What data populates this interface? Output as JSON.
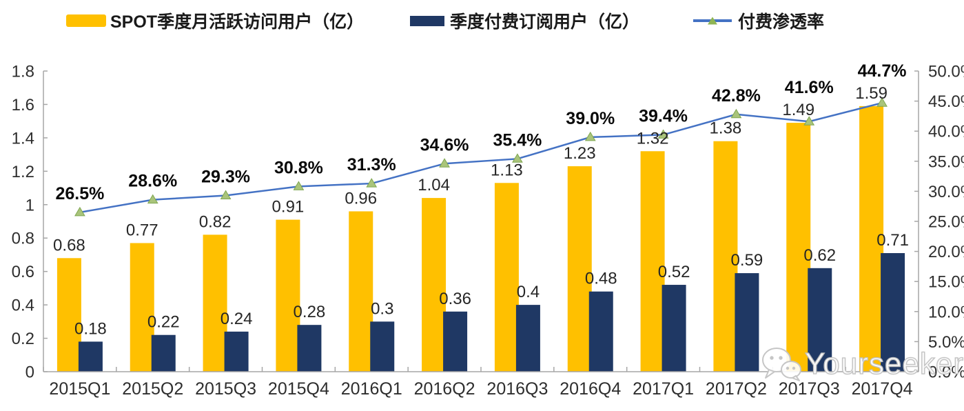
{
  "legend": {
    "items": [
      {
        "id": "mau",
        "label": "SPOT季度月活跃访问用户（亿）",
        "swatch": "bar",
        "color": "#FFC000"
      },
      {
        "id": "sub",
        "label": "季度付费订阅用户（亿）",
        "swatch": "bar",
        "color": "#1F3864"
      },
      {
        "id": "pen",
        "label": "付费渗透率",
        "swatch": "line",
        "line_color": "#4472C4",
        "marker_color": "#8FB554"
      }
    ]
  },
  "chart_data": {
    "type": "bar",
    "subtype": "bar+line combo, dual axis",
    "categories": [
      "2015Q1",
      "2015Q2",
      "2015Q3",
      "2015Q4",
      "2016Q1",
      "2016Q2",
      "2016Q3",
      "2016Q4",
      "2017Q1",
      "2017Q2",
      "2017Q3",
      "2017Q4"
    ],
    "series": [
      {
        "name": "SPOT季度月活跃访问用户（亿）",
        "type": "bar",
        "axis": "left",
        "color": "#FFC000",
        "values": [
          0.68,
          0.77,
          0.82,
          0.91,
          0.96,
          1.04,
          1.13,
          1.23,
          1.32,
          1.38,
          1.49,
          1.59
        ],
        "labels": [
          "0.68",
          "0.77",
          "0.82",
          "0.91",
          "0.96",
          "1.04",
          "1.13",
          "1.23",
          "1.32",
          "1.38",
          "1.49",
          "1.59"
        ]
      },
      {
        "name": "季度付费订阅用户（亿）",
        "type": "bar",
        "axis": "left",
        "color": "#1F3864",
        "values": [
          0.18,
          0.22,
          0.24,
          0.28,
          0.3,
          0.36,
          0.4,
          0.48,
          0.52,
          0.59,
          0.62,
          0.71
        ],
        "labels": [
          "0.18",
          "0.22",
          "0.24",
          "0.28",
          "0.3",
          "0.36",
          "0.4",
          "0.48",
          "0.52",
          "0.59",
          "0.62",
          "0.71"
        ]
      },
      {
        "name": "付费渗透率",
        "type": "line",
        "axis": "right",
        "color": "#4472C4",
        "marker": "triangle",
        "marker_fill": "#A9C47B",
        "marker_stroke": "#7FA650",
        "values": [
          26.5,
          28.6,
          29.3,
          30.8,
          31.3,
          34.6,
          35.4,
          39.0,
          39.4,
          42.8,
          41.6,
          44.7
        ],
        "labels": [
          "26.5%",
          "28.6%",
          "29.3%",
          "30.8%",
          "31.3%",
          "34.6%",
          "35.4%",
          "39.0%",
          "39.4%",
          "42.8%",
          "41.6%",
          "44.7%"
        ]
      }
    ],
    "left_axis": {
      "min": 0,
      "max": 1.8,
      "ticks": [
        "0",
        "0.2",
        "0.4",
        "0.6",
        "0.8",
        "1",
        "1.2",
        "1.4",
        "1.6",
        "1.8"
      ]
    },
    "right_axis": {
      "min": 0,
      "max": 50,
      "ticks": [
        "0.0%",
        "5.0%",
        "10.0%",
        "15.0%",
        "20.0%",
        "25.0%",
        "30.0%",
        "35.0%",
        "40.0%",
        "45.0%",
        "50.0%"
      ]
    },
    "grid": false,
    "legend_position": "top",
    "axis_color": "#a6a6a6"
  },
  "watermark": {
    "text": "Yourseeker",
    "icon": "wechat-icon"
  }
}
